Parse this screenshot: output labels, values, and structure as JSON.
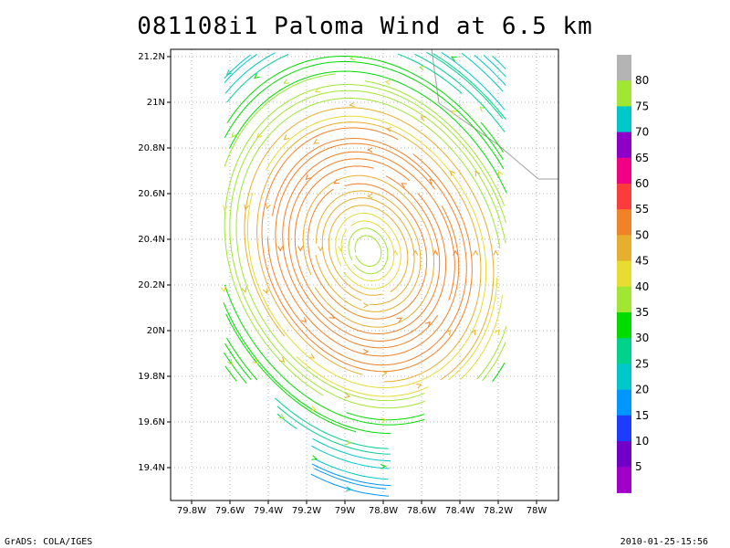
{
  "chart_data": {
    "type": "streamline",
    "title": "081108i1 Paloma Wind at 6.5 km",
    "x_ticks": [
      "79.8W",
      "79.6W",
      "79.4W",
      "79.2W",
      "79W",
      "78.8W",
      "78.6W",
      "78.4W",
      "78.2W",
      "78W"
    ],
    "y_ticks": [
      "21.2N",
      "21N",
      "20.8N",
      "20.6N",
      "20.4N",
      "20.2N",
      "20N",
      "19.8N",
      "19.6N",
      "19.4N"
    ],
    "xlim": [
      -79.9,
      -77.9
    ],
    "ylim": [
      19.25,
      21.25
    ],
    "grid": true,
    "storm_center": {
      "lon": -78.88,
      "lat": 20.35
    },
    "colorbar": {
      "labels": [
        "5",
        "10",
        "15",
        "20",
        "25",
        "30",
        "35",
        "40",
        "45",
        "50",
        "55",
        "60",
        "65",
        "70",
        "75",
        "80"
      ],
      "colors": [
        "#a000c8",
        "#7000c8",
        "#1e3cff",
        "#0096ff",
        "#00c8c8",
        "#00d28c",
        "#00dc00",
        "#a0e632",
        "#e6dc32",
        "#e6af2d",
        "#f08228",
        "#fa3c3c",
        "#f00082",
        "#8c00c8",
        "#00c8c8",
        "#a0e632",
        "#b4b4b4"
      ]
    }
  },
  "footer": {
    "left": "GrADS: COLA/IGES",
    "right": "2010-01-25-15:56"
  }
}
